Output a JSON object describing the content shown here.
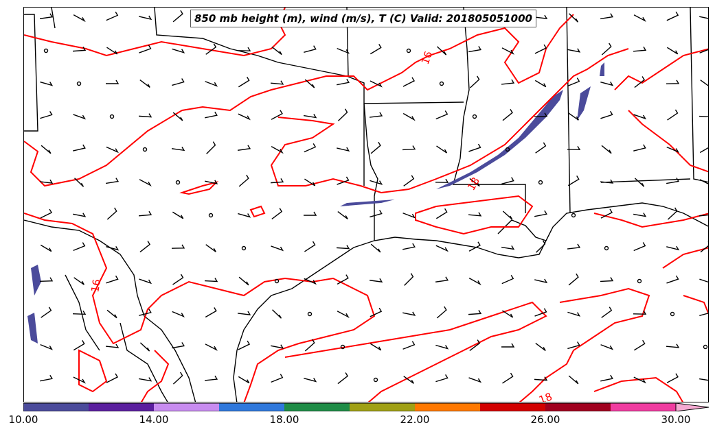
{
  "title": "850 mb height (m), wind (m/s), T (C) Valid: 201805051000",
  "contour_labels": [
    "16",
    "16",
    "18",
    "18"
  ],
  "colorbar": {
    "tick_labels": [
      "10.00",
      "14.00",
      "18.00",
      "22.00",
      "26.00",
      "30.00"
    ],
    "colors": [
      "#4b4b9b",
      "#5a1e9e",
      "#c88cf0",
      "#2f78dc",
      "#1e8c46",
      "#a0a014",
      "#ff7800",
      "#d20000",
      "#a0001e",
      "#f03ca0",
      "#f5aad2"
    ]
  },
  "colors": {
    "contour": "#ff0000",
    "boundary": "#000000",
    "shading": "#4b4b9b"
  }
}
